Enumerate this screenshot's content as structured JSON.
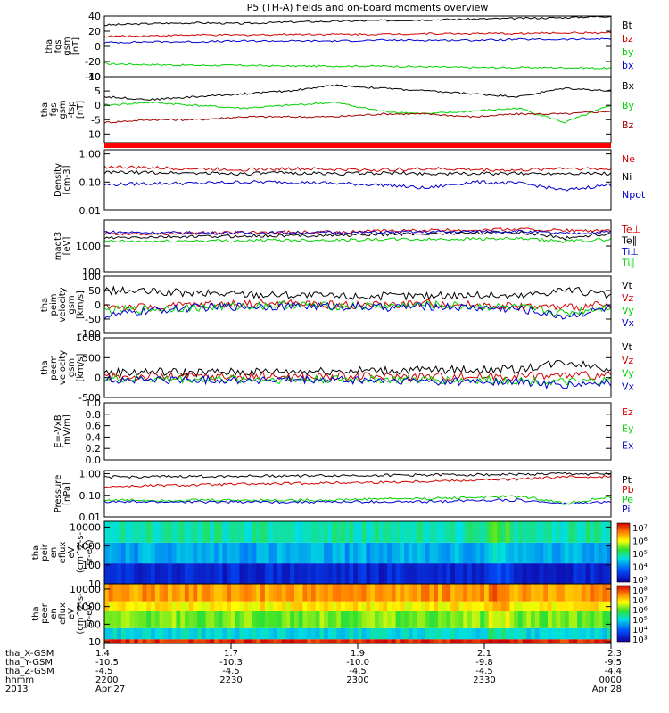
{
  "title": "P5 (TH-A) fields and on-board moments overview",
  "colors": {
    "black": "#000000",
    "red": "#d40000",
    "darkred": "#a00000",
    "green": "#00d200",
    "blue": "#0000d2"
  },
  "chart_data": [
    {
      "type": "line",
      "ylabel": [
        "tha",
        "fgs",
        "gsm",
        "[nT]"
      ],
      "ylim": [
        -40,
        40
      ],
      "ticks": [
        40,
        20,
        0,
        -20,
        -40
      ],
      "log": false,
      "zero_line": false,
      "series": [
        {
          "name": "Bt",
          "color": "#000000",
          "y": [
            28,
            30,
            31,
            30,
            32,
            33,
            34,
            35,
            36,
            37,
            38,
            40
          ]
        },
        {
          "name": "bz",
          "color": "#d40000",
          "y": [
            13,
            14,
            15,
            15,
            16,
            16,
            16,
            17,
            17,
            17,
            18,
            18
          ]
        },
        {
          "name": "by",
          "color": "#00d200",
          "y": [
            -23,
            -24,
            -25,
            -25,
            -26,
            -26,
            -26,
            -27,
            -28,
            -28,
            -28,
            -29
          ]
        },
        {
          "name": "bx",
          "color": "#0000d2",
          "y": [
            5,
            6,
            6,
            7,
            7,
            7,
            8,
            8,
            8,
            9,
            9,
            10
          ]
        }
      ]
    },
    {
      "type": "line",
      "ylabel": [
        "tha",
        "fgs",
        "gsm",
        "-tsp",
        "[nT]"
      ],
      "ylim": [
        -13,
        10
      ],
      "ticks": [
        10,
        5,
        0,
        -5,
        -10
      ],
      "log": false,
      "zero_line": false,
      "series": [
        {
          "name": "Bx",
          "color": "#000000",
          "y": [
            3,
            2,
            3,
            4,
            5,
            7,
            6,
            5,
            4,
            3,
            6,
            5
          ]
        },
        {
          "name": "By",
          "color": "#00d200",
          "y": [
            0,
            1,
            0,
            -1,
            0,
            1,
            -2,
            -3,
            -2,
            -1,
            -6,
            0
          ]
        },
        {
          "name": "Bz",
          "color": "#a00000",
          "y": [
            -6,
            -5,
            -5,
            -4,
            -4,
            -4,
            -3,
            -3,
            -4,
            -3,
            -3,
            -2
          ]
        }
      ]
    },
    {
      "type": "line",
      "ylabel": [
        "Density",
        "[cm-3]"
      ],
      "ylim": [
        0.01,
        1.4
      ],
      "ticks": [
        1.0,
        0.1,
        0.01
      ],
      "ticklabels": [
        "1.00",
        "0.10",
        "0.01"
      ],
      "log": true,
      "series": [
        {
          "name": "Ne",
          "color": "#d40000",
          "y": [
            0.35,
            0.32,
            0.3,
            0.28,
            0.3,
            0.28,
            0.27,
            0.3,
            0.28,
            0.26,
            0.32,
            0.28
          ]
        },
        {
          "name": "Ni",
          "color": "#000000",
          "y": [
            0.22,
            0.22,
            0.21,
            0.2,
            0.21,
            0.2,
            0.21,
            0.2,
            0.2,
            0.2,
            0.21,
            0.2
          ]
        },
        {
          "name": "Npot",
          "color": "#0000d2",
          "y": [
            0.08,
            0.09,
            0.09,
            0.1,
            0.1,
            0.09,
            0.08,
            0.06,
            0.1,
            0.09,
            0.05,
            0.08
          ]
        }
      ]
    },
    {
      "type": "line",
      "ylabel": [
        "magt3",
        "[eV]"
      ],
      "ylim": [
        100,
        10000
      ],
      "ticks": [
        10000,
        1000,
        100
      ],
      "ticklabels": [
        "",
        "1000",
        "100"
      ],
      "log": true,
      "series": [
        {
          "name": "Te⊥",
          "color": "#d40000",
          "y": [
            3000,
            3000,
            3200,
            3300,
            3400,
            3500,
            3800,
            4000,
            4200,
            4500,
            4000,
            3800
          ]
        },
        {
          "name": "Te∥",
          "color": "#000000",
          "y": [
            2000,
            2200,
            2300,
            2400,
            2500,
            2600,
            2800,
            3000,
            3200,
            3400,
            2000,
            3000
          ]
        },
        {
          "name": "Ti⊥",
          "color": "#0000d2",
          "y": [
            3500,
            3300,
            3200,
            3200,
            3300,
            3300,
            3400,
            3500,
            3600,
            3700,
            3000,
            3500
          ]
        },
        {
          "name": "Ti∥",
          "color": "#00d200",
          "y": [
            1500,
            1500,
            1600,
            1600,
            1700,
            1700,
            1800,
            1800,
            1900,
            1900,
            1500,
            1800
          ]
        }
      ]
    },
    {
      "type": "line",
      "ylabel": [
        "tha",
        "peim",
        "velocity",
        "gsm",
        "[km/s]"
      ],
      "ylim": [
        -100,
        100
      ],
      "ticks": [
        100,
        50,
        0,
        -50,
        -100
      ],
      "log": false,
      "series": [
        {
          "name": "Vt",
          "color": "#000000",
          "y": [
            50,
            45,
            40,
            38,
            35,
            30,
            30,
            32,
            35,
            30,
            55,
            30
          ]
        },
        {
          "name": "Vz",
          "color": "#d40000",
          "y": [
            -5,
            -10,
            0,
            5,
            5,
            0,
            0,
            5,
            0,
            -5,
            -10,
            0
          ]
        },
        {
          "name": "Vy",
          "color": "#00d200",
          "y": [
            -20,
            -15,
            -10,
            -5,
            0,
            -5,
            -5,
            0,
            -5,
            -10,
            -30,
            -5
          ]
        },
        {
          "name": "Vx",
          "color": "#0000d2",
          "y": [
            -40,
            -20,
            -10,
            -5,
            -5,
            -5,
            -10,
            -5,
            -10,
            -15,
            -40,
            -10
          ]
        }
      ]
    },
    {
      "type": "line",
      "ylabel": [
        "tha",
        "peem",
        "velocity",
        "gsm",
        "[km/s]"
      ],
      "ylim": [
        -500,
        1000
      ],
      "ticks": [
        1000,
        500,
        0,
        -500
      ],
      "log": false,
      "series": [
        {
          "name": "Vt",
          "color": "#000000",
          "y": [
            120,
            150,
            130,
            140,
            160,
            170,
            180,
            190,
            200,
            210,
            400,
            230
          ]
        },
        {
          "name": "Vz",
          "color": "#d40000",
          "y": [
            20,
            30,
            25,
            20,
            30,
            25,
            30,
            35,
            30,
            40,
            60,
            45
          ]
        },
        {
          "name": "Vy",
          "color": "#00d200",
          "y": [
            -30,
            -40,
            -35,
            -40,
            -45,
            -40,
            -50,
            -55,
            -60,
            -70,
            -120,
            -80
          ]
        },
        {
          "name": "Vx",
          "color": "#0000d2",
          "y": [
            -50,
            -60,
            -55,
            -60,
            -70,
            -65,
            -80,
            -90,
            -100,
            -110,
            -200,
            -130
          ]
        }
      ]
    },
    {
      "type": "line",
      "ylabel": [
        "E=-VxB",
        "[mV/m]"
      ],
      "ylim": [
        0,
        1
      ],
      "ticks": [
        1.0,
        0.8,
        0.6,
        0.4,
        0.2,
        0.0
      ],
      "ticklabels": [
        "1.0",
        "0.8",
        "0.6",
        "0.4",
        "0.2",
        "0.0"
      ],
      "log": false,
      "series": [
        {
          "name": "Ez",
          "color": "#d40000",
          "y": []
        },
        {
          "name": "Ey",
          "color": "#00d200",
          "y": []
        },
        {
          "name": "Ex",
          "color": "#0000d2",
          "y": []
        }
      ]
    },
    {
      "type": "line",
      "ylabel": [
        "Pressure",
        "[nPa]"
      ],
      "ylim": [
        0.01,
        1.4
      ],
      "ticks": [
        1.0,
        0.1,
        0.01
      ],
      "ticklabels": [
        "1.00",
        "0.10",
        "0.01"
      ],
      "log": true,
      "series": [
        {
          "name": "Pt",
          "color": "#000000",
          "y": [
            0.7,
            0.72,
            0.75,
            0.78,
            0.8,
            0.82,
            0.85,
            0.88,
            0.9,
            0.92,
            1.0,
            0.95
          ]
        },
        {
          "name": "Pb",
          "color": "#d40000",
          "y": [
            0.25,
            0.28,
            0.3,
            0.33,
            0.35,
            0.38,
            0.4,
            0.45,
            0.5,
            0.55,
            0.7,
            0.75
          ]
        },
        {
          "name": "Pe",
          "color": "#00d200",
          "y": [
            0.06,
            0.06,
            0.06,
            0.06,
            0.06,
            0.06,
            0.07,
            0.07,
            0.08,
            0.09,
            0.04,
            0.08
          ]
        },
        {
          "name": "Pi",
          "color": "#0000d2",
          "y": [
            0.05,
            0.05,
            0.05,
            0.05,
            0.05,
            0.05,
            0.05,
            0.05,
            0.06,
            0.06,
            0.04,
            0.05
          ]
        }
      ]
    },
    {
      "type": "heatmap",
      "ylabel": [
        "tha",
        "peir",
        "en",
        "eflux",
        "eV",
        "(cm^2-s-",
        "sr-eV)"
      ],
      "ylim": [
        10,
        20000
      ],
      "ticks": [
        10000,
        1000,
        100,
        10
      ],
      "ticklabels": [
        "10000",
        "1000",
        "100",
        "10"
      ],
      "colorbar": {
        "labels": [
          "10⁷",
          "10⁶",
          "10⁵",
          "10⁴",
          "10³"
        ]
      },
      "layers": [
        {
          "from": 10,
          "to": 120,
          "level": 0.1
        },
        {
          "from": 120,
          "to": 1500,
          "level": 0.32
        },
        {
          "from": 1500,
          "to": 20000,
          "level": 0.45
        }
      ]
    },
    {
      "type": "heatmap",
      "ylabel": [
        "tha",
        "peer",
        "en",
        "eflux",
        "eV",
        "(cm^2-s-",
        "sr-eV)"
      ],
      "ylim": [
        8,
        20000
      ],
      "ticks": [
        10000,
        1000,
        100,
        10
      ],
      "ticklabels": [
        "10000",
        "1000",
        "100",
        "10"
      ],
      "colorbar": {
        "labels": [
          "10⁸",
          "10⁷",
          "10⁶",
          "10⁵",
          "10⁴",
          "10³"
        ]
      },
      "layers": [
        {
          "from": 8,
          "to": 14,
          "level": 0.95
        },
        {
          "from": 14,
          "to": 60,
          "level": 0.4
        },
        {
          "from": 60,
          "to": 600,
          "level": 0.6
        },
        {
          "from": 600,
          "to": 2000,
          "level": 0.72
        },
        {
          "from": 2000,
          "to": 20000,
          "level": 0.82
        }
      ]
    }
  ],
  "x_axis": {
    "row_labels": [
      "tha_X-GSM",
      "tha_Y-GSM",
      "tha_Z-GSM",
      "hhmm",
      "2013"
    ],
    "columns": [
      {
        "v": [
          "1.4",
          "-10.5",
          "-4.5",
          "2200",
          "Apr 27"
        ]
      },
      {
        "v": [
          "1.7",
          "-10.3",
          "-4.5",
          "2230",
          ""
        ]
      },
      {
        "v": [
          "1.9",
          "-10.0",
          "-4.5",
          "2300",
          ""
        ]
      },
      {
        "v": [
          "2.1",
          "-9.8",
          "-4.5",
          "2330",
          ""
        ]
      },
      {
        "v": [
          "2.3",
          "-9.5",
          "-4.4",
          "0000",
          "Apr 28"
        ]
      }
    ]
  }
}
